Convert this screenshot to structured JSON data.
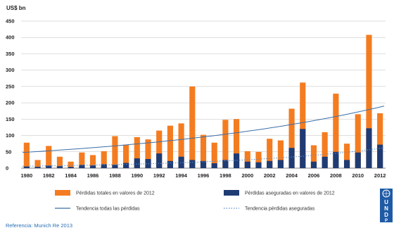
{
  "chart_data": {
    "type": "bar",
    "ylabel": "US$ bn",
    "ylim": [
      0,
      450
    ],
    "yticks": [
      0,
      50,
      100,
      150,
      200,
      250,
      300,
      350,
      400,
      450
    ],
    "grid": true,
    "x": [
      1980,
      1981,
      1982,
      1983,
      1984,
      1985,
      1986,
      1987,
      1988,
      1989,
      1990,
      1991,
      1992,
      1993,
      1994,
      1995,
      1996,
      1997,
      1998,
      1999,
      2000,
      2001,
      2002,
      2003,
      2004,
      2005,
      2006,
      2007,
      2008,
      2009,
      2010,
      2011,
      2012
    ],
    "xtick_labels": [
      "1980",
      "1982",
      "1984",
      "1986",
      "1988",
      "1990",
      "1992",
      "1994",
      "1996",
      "1998",
      "2000",
      "2002",
      "2004",
      "2006",
      "2008",
      "2010",
      "2012"
    ],
    "series": [
      {
        "name": "Pérdidas totales en valores de 2012",
        "color": "#f47c20",
        "values": [
          78,
          25,
          68,
          35,
          20,
          48,
          40,
          52,
          98,
          72,
          95,
          88,
          115,
          130,
          137,
          250,
          102,
          78,
          148,
          150,
          52,
          50,
          90,
          85,
          182,
          262,
          70,
          110,
          228,
          75,
          165,
          408,
          168
        ]
      },
      {
        "name": "Pérdidas aseguradas en valores de 2012",
        "color": "#1f3b73",
        "values": [
          5,
          4,
          8,
          6,
          4,
          10,
          8,
          12,
          10,
          16,
          30,
          28,
          45,
          22,
          35,
          25,
          22,
          15,
          25,
          45,
          20,
          18,
          22,
          25,
          62,
          120,
          20,
          35,
          50,
          25,
          48,
          122,
          72
        ]
      }
    ],
    "trendlines": [
      {
        "name": "Tendencia todas las pérdidas",
        "color": "#3b6ea8",
        "style": "solid",
        "start": [
          1980,
          48
        ],
        "end": [
          2012,
          190
        ]
      },
      {
        "name": "Tendencia pérdidas aseguradas",
        "color": "#5b8fc7",
        "style": "dotted",
        "start": [
          1980,
          6
        ],
        "end": [
          2012,
          62
        ]
      }
    ],
    "legend": [
      {
        "label": "Pérdidas totales en valores de 2012",
        "kind": "box",
        "color": "#f47c20"
      },
      {
        "label": "Pérdidas aseguradas en valores de 2012",
        "kind": "box",
        "color": "#1f3b73"
      },
      {
        "label": "Tendencia todas las pérdidas",
        "kind": "line",
        "color": "#3b6ea8"
      },
      {
        "label": "Tendencia pérdidas aseguradas",
        "kind": "dots",
        "color": "#5b8fc7"
      }
    ],
    "legend_position": "bottom"
  },
  "footer": {
    "reference": "Referencia: Munich Re 2013"
  },
  "logo": {
    "text": "UNDP",
    "color": "#1f5aa6"
  }
}
